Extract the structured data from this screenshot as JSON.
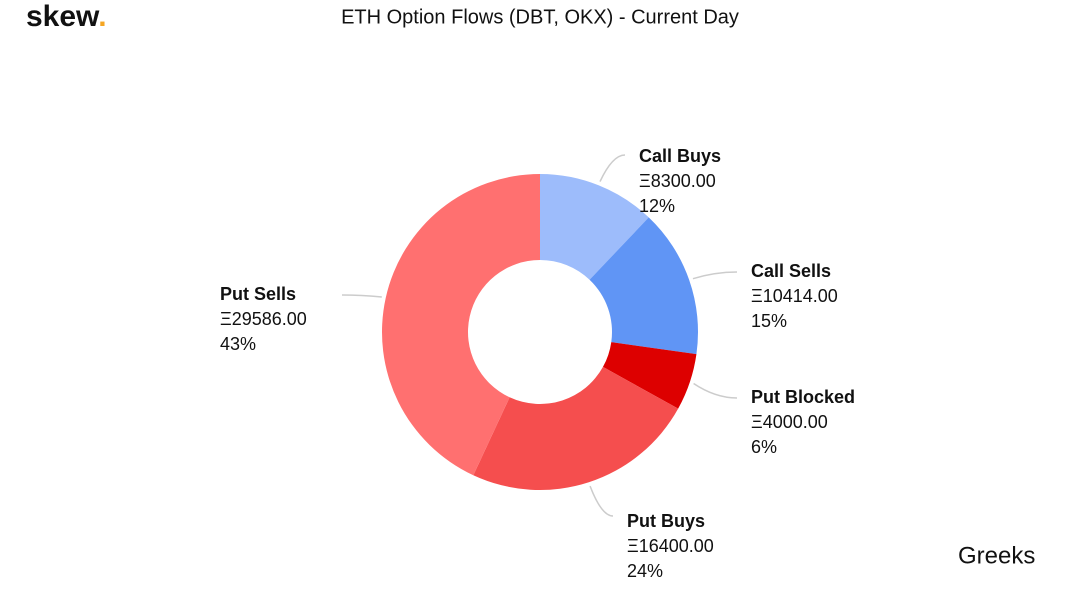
{
  "logo": {
    "text": "skew",
    "mark": "."
  },
  "watermark": "Greeks",
  "chart_data": {
    "type": "donut",
    "title": "ETH Option Flows (DBT, OKX) - Current Day",
    "categories": [
      "Call Buys",
      "Call Sells",
      "Put Blocked",
      "Put Buys",
      "Put Sells"
    ],
    "values": [
      8300,
      10414,
      4000,
      16400,
      29586
    ],
    "value_labels": [
      "Ξ8300.00",
      "Ξ10414.00",
      "Ξ4000.00",
      "Ξ16400.00",
      "Ξ29586.00"
    ],
    "percent_labels": [
      "12%",
      "15%",
      "6%",
      "24%",
      "43%"
    ],
    "colors": [
      "#9dbcfb",
      "#6095f5",
      "#dd0000",
      "#f54e4e",
      "#ff7070"
    ]
  }
}
